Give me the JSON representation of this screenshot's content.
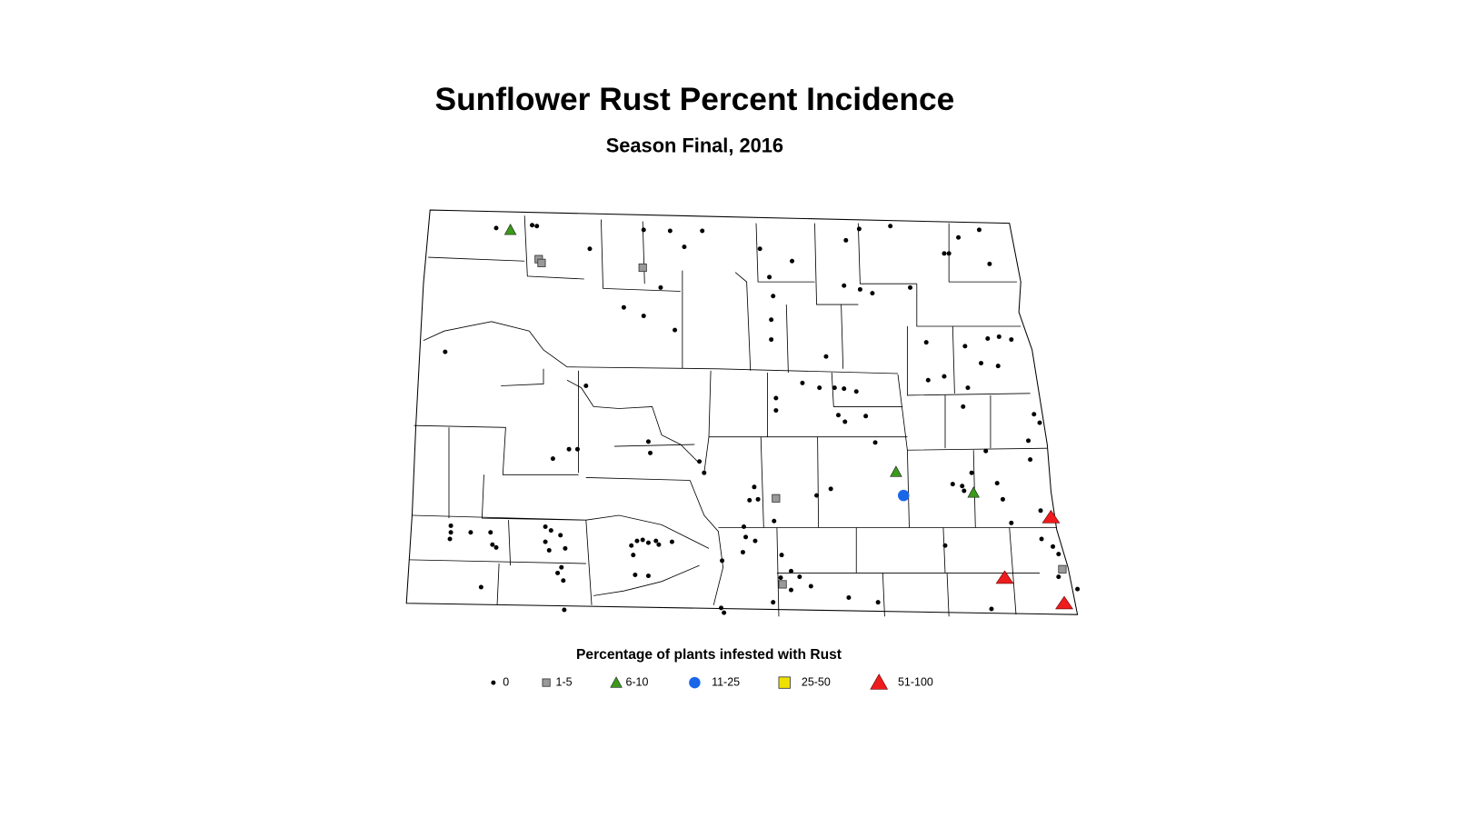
{
  "header": {
    "title": "Sunflower Rust Percent Incidence",
    "subtitle": "Season Final, 2016"
  },
  "legend": {
    "title": "Percentage of plants infested with Rust",
    "items": [
      "0",
      "1-5",
      "6-10",
      "11-25",
      "25-50",
      "51-100"
    ]
  }
}
